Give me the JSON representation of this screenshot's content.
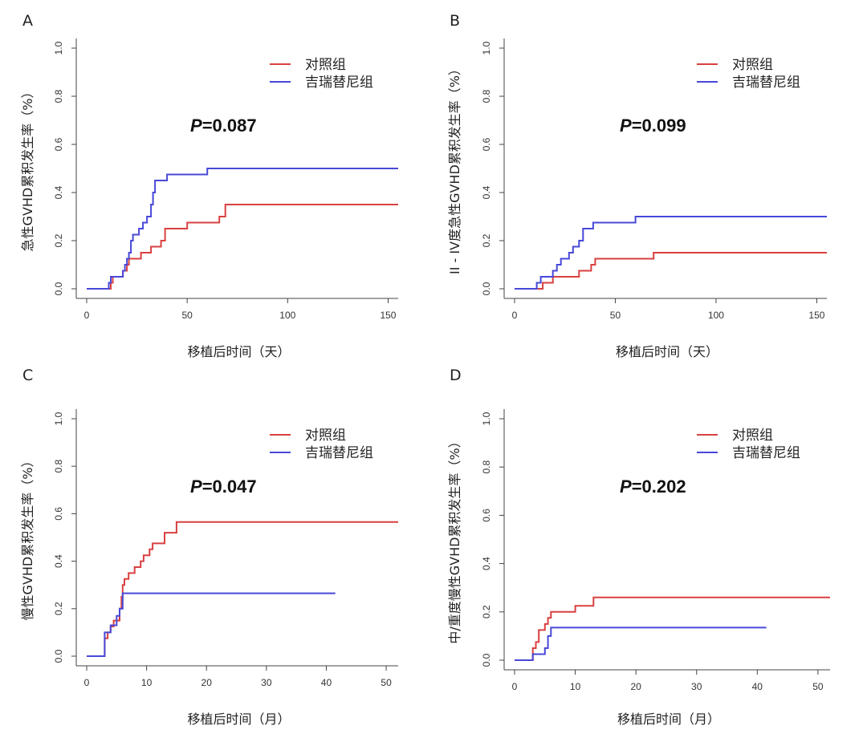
{
  "chart_data": [
    {
      "panel": "A",
      "type": "line",
      "step": true,
      "xlabel": "移植后时间（天）",
      "ylabel": "急性GVHD累积发生率（%）",
      "xlim": [
        0,
        155
      ],
      "ylim": [
        0,
        1.0
      ],
      "xticks": [
        0,
        50,
        100,
        150
      ],
      "yticks": [
        "0.0",
        "0.2",
        "0.4",
        "0.6",
        "0.8",
        "1.0"
      ],
      "p_prefix": "P",
      "p_value": "=0.087",
      "legend": "top-right",
      "series": [
        {
          "name": "对照组",
          "color": "#d94040",
          "points": [
            [
              0,
              0
            ],
            [
              12,
              0
            ],
            [
              12,
              0.025
            ],
            [
              13,
              0.025
            ],
            [
              13,
              0.05
            ],
            [
              18,
              0.05
            ],
            [
              18,
              0.075
            ],
            [
              20,
              0.075
            ],
            [
              20,
              0.1
            ],
            [
              21,
              0.1
            ],
            [
              21,
              0.125
            ],
            [
              27,
              0.125
            ],
            [
              27,
              0.15
            ],
            [
              32,
              0.15
            ],
            [
              32,
              0.175
            ],
            [
              37,
              0.175
            ],
            [
              37,
              0.2
            ],
            [
              39,
              0.2
            ],
            [
              39,
              0.25
            ],
            [
              50,
              0.25
            ],
            [
              50,
              0.275
            ],
            [
              66,
              0.275
            ],
            [
              66,
              0.3
            ],
            [
              69,
              0.3
            ],
            [
              69,
              0.35
            ],
            [
              155,
              0.35
            ]
          ]
        },
        {
          "name": "吉瑞替尼组",
          "color": "#4848d8",
          "points": [
            [
              0,
              0
            ],
            [
              11,
              0
            ],
            [
              11,
              0.025
            ],
            [
              12,
              0.025
            ],
            [
              12,
              0.05
            ],
            [
              18,
              0.05
            ],
            [
              18,
              0.075
            ],
            [
              19,
              0.075
            ],
            [
              19,
              0.1
            ],
            [
              20,
              0.1
            ],
            [
              20,
              0.125
            ],
            [
              21,
              0.125
            ],
            [
              21,
              0.15
            ],
            [
              22,
              0.15
            ],
            [
              22,
              0.2
            ],
            [
              23,
              0.2
            ],
            [
              23,
              0.225
            ],
            [
              26,
              0.225
            ],
            [
              26,
              0.25
            ],
            [
              28,
              0.25
            ],
            [
              28,
              0.275
            ],
            [
              30,
              0.275
            ],
            [
              30,
              0.3
            ],
            [
              32,
              0.3
            ],
            [
              32,
              0.35
            ],
            [
              33,
              0.35
            ],
            [
              33,
              0.4
            ],
            [
              34,
              0.4
            ],
            [
              34,
              0.45
            ],
            [
              40,
              0.45
            ],
            [
              40,
              0.475
            ],
            [
              60,
              0.475
            ],
            [
              60,
              0.5
            ],
            [
              155,
              0.5
            ]
          ]
        }
      ]
    },
    {
      "panel": "B",
      "type": "line",
      "step": true,
      "xlabel": "移植后时间（天）",
      "ylabel": "II - IV度急性GVHD累积发生率（%）",
      "xlim": [
        0,
        155
      ],
      "ylim": [
        0,
        1.0
      ],
      "xticks": [
        0,
        50,
        100,
        150
      ],
      "yticks": [
        "0.0",
        "0.2",
        "0.4",
        "0.6",
        "0.8",
        "1.0"
      ],
      "p_prefix": "P",
      "p_value": "=0.099",
      "legend": "top-right",
      "series": [
        {
          "name": "对照组",
          "color": "#d94040",
          "points": [
            [
              0,
              0
            ],
            [
              14,
              0
            ],
            [
              14,
              0.025
            ],
            [
              19,
              0.025
            ],
            [
              19,
              0.05
            ],
            [
              32,
              0.05
            ],
            [
              32,
              0.075
            ],
            [
              38,
              0.075
            ],
            [
              38,
              0.1
            ],
            [
              40,
              0.1
            ],
            [
              40,
              0.125
            ],
            [
              69,
              0.125
            ],
            [
              69,
              0.15
            ],
            [
              155,
              0.15
            ]
          ]
        },
        {
          "name": "吉瑞替尼组",
          "color": "#4848d8",
          "points": [
            [
              0,
              0
            ],
            [
              11,
              0
            ],
            [
              11,
              0.025
            ],
            [
              13,
              0.025
            ],
            [
              13,
              0.05
            ],
            [
              19,
              0.05
            ],
            [
              19,
              0.075
            ],
            [
              21,
              0.075
            ],
            [
              21,
              0.1
            ],
            [
              23,
              0.1
            ],
            [
              23,
              0.125
            ],
            [
              27,
              0.125
            ],
            [
              27,
              0.15
            ],
            [
              29,
              0.15
            ],
            [
              29,
              0.175
            ],
            [
              32,
              0.175
            ],
            [
              32,
              0.2
            ],
            [
              34,
              0.2
            ],
            [
              34,
              0.25
            ],
            [
              39,
              0.25
            ],
            [
              39,
              0.275
            ],
            [
              60,
              0.275
            ],
            [
              60,
              0.3
            ],
            [
              155,
              0.3
            ]
          ]
        }
      ]
    },
    {
      "panel": "C",
      "type": "line",
      "step": true,
      "xlabel": "移植后时间（月）",
      "ylabel": "慢性GVHD累积发生率（%）",
      "xlim": [
        0,
        52
      ],
      "ylim": [
        0,
        1.0
      ],
      "xticks": [
        0,
        10,
        20,
        30,
        40,
        50
      ],
      "yticks": [
        "0.0",
        "0.2",
        "0.4",
        "0.6",
        "0.8",
        "1.0"
      ],
      "p_prefix": "P",
      "p_value": "=0.047",
      "legend": "top-right",
      "series": [
        {
          "name": "对照组",
          "color": "#d94040",
          "points": [
            [
              0,
              0
            ],
            [
              3,
              0
            ],
            [
              3,
              0.075
            ],
            [
              3.5,
              0.075
            ],
            [
              3.5,
              0.1
            ],
            [
              4,
              0.1
            ],
            [
              4,
              0.125
            ],
            [
              4.5,
              0.125
            ],
            [
              4.5,
              0.15
            ],
            [
              5.5,
              0.15
            ],
            [
              5.5,
              0.2
            ],
            [
              5.8,
              0.2
            ],
            [
              5.8,
              0.25
            ],
            [
              6,
              0.25
            ],
            [
              6,
              0.3
            ],
            [
              6.3,
              0.3
            ],
            [
              6.3,
              0.325
            ],
            [
              7,
              0.325
            ],
            [
              7,
              0.35
            ],
            [
              8,
              0.35
            ],
            [
              8,
              0.375
            ],
            [
              9,
              0.375
            ],
            [
              9,
              0.4
            ],
            [
              9.5,
              0.4
            ],
            [
              9.5,
              0.425
            ],
            [
              10.5,
              0.425
            ],
            [
              10.5,
              0.45
            ],
            [
              11,
              0.45
            ],
            [
              11,
              0.475
            ],
            [
              13,
              0.475
            ],
            [
              13,
              0.52
            ],
            [
              15,
              0.52
            ],
            [
              15,
              0.565
            ],
            [
              52,
              0.565
            ]
          ]
        },
        {
          "name": "吉瑞替尼组",
          "color": "#4848d8",
          "points": [
            [
              0,
              0
            ],
            [
              3,
              0
            ],
            [
              3,
              0.1
            ],
            [
              4,
              0.1
            ],
            [
              4,
              0.13
            ],
            [
              5,
              0.13
            ],
            [
              5,
              0.17
            ],
            [
              5.5,
              0.17
            ],
            [
              5.5,
              0.2
            ],
            [
              6,
              0.2
            ],
            [
              6,
              0.265
            ],
            [
              41.5,
              0.265
            ]
          ]
        }
      ]
    },
    {
      "panel": "D",
      "type": "line",
      "step": true,
      "xlabel": "移植后时间（月）",
      "ylabel": "中/重度慢性GVHD累积发生率（%）",
      "xlim": [
        0,
        52
      ],
      "ylim": [
        0,
        1.0
      ],
      "xticks": [
        0,
        10,
        20,
        30,
        40,
        50
      ],
      "yticks": [
        "0.0",
        "0.2",
        "0.4",
        "0.6",
        "0.8",
        "1.0"
      ],
      "p_prefix": "P",
      "p_value": "=0.202",
      "legend": "top-right",
      "series": [
        {
          "name": "对照组",
          "color": "#d94040",
          "points": [
            [
              0,
              0
            ],
            [
              3,
              0
            ],
            [
              3,
              0.05
            ],
            [
              3.5,
              0.05
            ],
            [
              3.5,
              0.075
            ],
            [
              4,
              0.075
            ],
            [
              4,
              0.125
            ],
            [
              5,
              0.125
            ],
            [
              5,
              0.15
            ],
            [
              5.5,
              0.15
            ],
            [
              5.5,
              0.175
            ],
            [
              6,
              0.175
            ],
            [
              6,
              0.2
            ],
            [
              10,
              0.2
            ],
            [
              10,
              0.225
            ],
            [
              13,
              0.225
            ],
            [
              13,
              0.26
            ],
            [
              52,
              0.26
            ]
          ]
        },
        {
          "name": "吉瑞替尼组",
          "color": "#4848d8",
          "points": [
            [
              0,
              0
            ],
            [
              3,
              0
            ],
            [
              3,
              0.025
            ],
            [
              5,
              0.025
            ],
            [
              5,
              0.05
            ],
            [
              5.5,
              0.05
            ],
            [
              5.5,
              0.1
            ],
            [
              6,
              0.1
            ],
            [
              6,
              0.135
            ],
            [
              41.5,
              0.135
            ]
          ]
        }
      ]
    }
  ]
}
